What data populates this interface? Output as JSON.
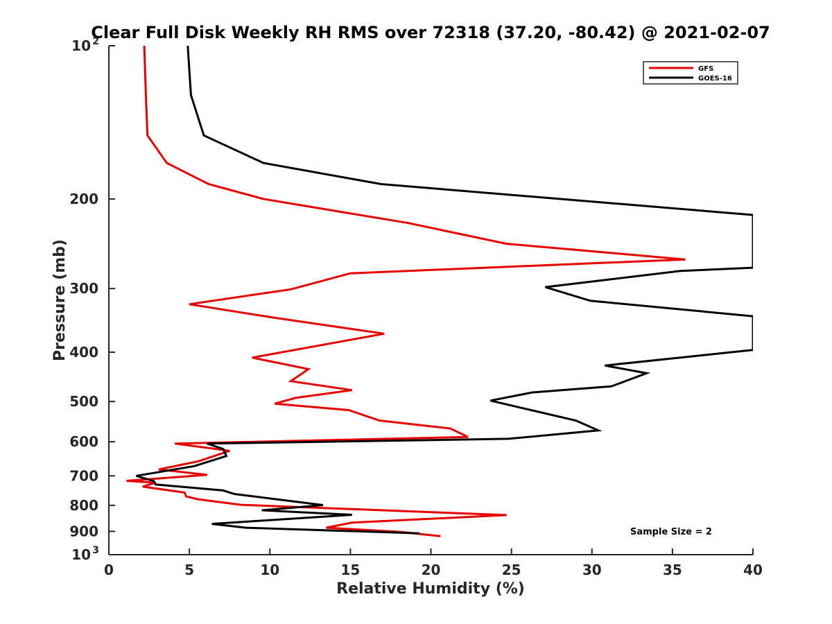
{
  "chart_data": {
    "type": "line",
    "title": "Clear Full Disk Weekly RH RMS over 72318 (37.20, -80.42) @ 2021-02-07",
    "xlabel": "Relative Humidity (%)",
    "ylabel": "Pressure (mb)",
    "xlim": [
      0,
      40
    ],
    "ylim": [
      100,
      1000
    ],
    "yscale": "log",
    "y_reversed": true,
    "grid": false,
    "legend_position": "top-right",
    "x_ticks": [
      "0",
      "5",
      "10",
      "15",
      "20",
      "25",
      "30",
      "35",
      "40"
    ],
    "y_ticks": [
      {
        "value": 200,
        "label": "200"
      },
      {
        "value": 300,
        "label": "300"
      },
      {
        "value": 400,
        "label": "400"
      },
      {
        "value": 500,
        "label": "500"
      },
      {
        "value": 600,
        "label": "600"
      },
      {
        "value": 700,
        "label": "700"
      },
      {
        "value": 800,
        "label": "800"
      },
      {
        "value": 900,
        "label": "900"
      }
    ],
    "y_pow_ticks": [
      {
        "value": 100,
        "base": "10",
        "exp": "2"
      },
      {
        "value": 1000,
        "base": "10",
        "exp": "3"
      }
    ],
    "series": [
      {
        "name": "GFS",
        "color": "#e60000",
        "points": [
          [
            2.2,
            100
          ],
          [
            2.3,
            125
          ],
          [
            2.4,
            150
          ],
          [
            3.6,
            170
          ],
          [
            6.2,
            187
          ],
          [
            9.6,
            200
          ],
          [
            18.6,
            223
          ],
          [
            24.7,
            245
          ],
          [
            35.8,
            263
          ],
          [
            15.0,
            280
          ],
          [
            11.3,
            301
          ],
          [
            5.0,
            322
          ],
          [
            10.2,
            342
          ],
          [
            17.1,
            368
          ],
          [
            8.9,
            410
          ],
          [
            12.4,
            432
          ],
          [
            11.3,
            456
          ],
          [
            15.1,
            475
          ],
          [
            11.6,
            492
          ],
          [
            10.3,
            505
          ],
          [
            14.9,
            520
          ],
          [
            16.8,
            545
          ],
          [
            21.2,
            565
          ],
          [
            22.3,
            587
          ],
          [
            4.1,
            605
          ],
          [
            7.5,
            625
          ],
          [
            5.6,
            655
          ],
          [
            3.1,
            680
          ],
          [
            6.1,
            697
          ],
          [
            1.1,
            716
          ],
          [
            2.9,
            722
          ],
          [
            2.1,
            735
          ],
          [
            4.7,
            755
          ],
          [
            4.8,
            768
          ],
          [
            5.5,
            778
          ],
          [
            8.2,
            798
          ],
          [
            24.7,
            836
          ],
          [
            15.1,
            865
          ],
          [
            13.5,
            885
          ],
          [
            18.1,
            902
          ],
          [
            20.6,
            920
          ]
        ]
      },
      {
        "name": "GOES-16",
        "color": "#000000",
        "points": [
          [
            4.9,
            100
          ],
          [
            5.1,
            125
          ],
          [
            5.9,
            150
          ],
          [
            9.6,
            170
          ],
          [
            16.9,
            187
          ],
          [
            40.0,
            215
          ],
          [
            40.0,
            273
          ],
          [
            35.5,
            277
          ],
          [
            27.1,
            298
          ],
          [
            29.9,
            317
          ],
          [
            40.0,
            340
          ],
          [
            40.0,
            396
          ],
          [
            38.7,
            400
          ],
          [
            30.8,
            425
          ],
          [
            33.4,
            440
          ],
          [
            31.2,
            467
          ],
          [
            26.3,
            480
          ],
          [
            23.7,
            498
          ],
          [
            26.0,
            518
          ],
          [
            29.0,
            545
          ],
          [
            30.4,
            570
          ],
          [
            24.8,
            592
          ],
          [
            6.1,
            605
          ],
          [
            7.1,
            620
          ],
          [
            7.3,
            640
          ],
          [
            5.3,
            670
          ],
          [
            2.9,
            690
          ],
          [
            1.7,
            700
          ],
          [
            2.8,
            717
          ],
          [
            2.9,
            728
          ],
          [
            7.1,
            748
          ],
          [
            7.8,
            760
          ],
          [
            13.3,
            799
          ],
          [
            9.5,
            818
          ],
          [
            15.1,
            835
          ],
          [
            6.4,
            870
          ],
          [
            8.5,
            885
          ],
          [
            19.3,
            908
          ]
        ]
      }
    ],
    "annotation": "Sample Size = 2"
  }
}
